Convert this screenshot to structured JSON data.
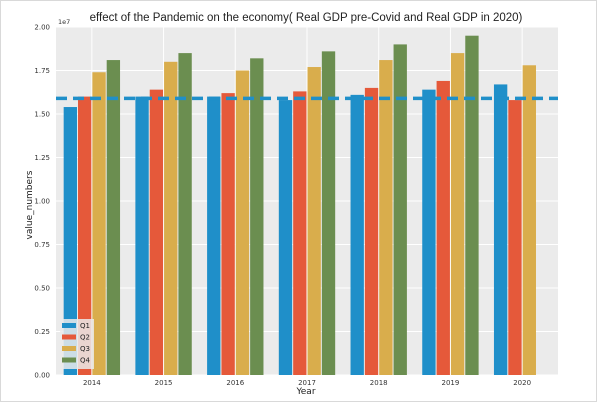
{
  "chart_data": {
    "type": "bar",
    "title": "effect of the Pandemic on the economy( Real GDP pre-Covid and Real GDP in 2020)",
    "xlabel": "Year",
    "ylabel": "value_numbers",
    "y_multiplier": "1e7",
    "ylim": [
      0.0,
      2.0
    ],
    "yticks": [
      "0.00",
      "0.25",
      "0.50",
      "0.75",
      "1.00",
      "1.25",
      "1.50",
      "1.75",
      "2.00"
    ],
    "categories": [
      "2014",
      "2015",
      "2016",
      "2017",
      "2018",
      "2019",
      "2020"
    ],
    "series": [
      {
        "name": "Q1",
        "color": "#1f8fc9",
        "values": [
          1.54,
          1.6,
          1.6,
          1.58,
          1.61,
          1.64,
          1.67
        ]
      },
      {
        "name": "Q2",
        "color": "#e5593a",
        "values": [
          1.6,
          1.64,
          1.62,
          1.63,
          1.65,
          1.69,
          1.58
        ]
      },
      {
        "name": "Q3",
        "color": "#d9ad4c",
        "values": [
          1.74,
          1.8,
          1.75,
          1.77,
          1.81,
          1.85,
          1.78
        ]
      },
      {
        "name": "Q4",
        "color": "#6b8e50",
        "values": [
          1.81,
          1.85,
          1.82,
          1.86,
          1.9,
          1.95,
          null
        ]
      }
    ],
    "reference_line": {
      "value": 1.59,
      "color": "#1f8fc9",
      "style": "dashed"
    },
    "grid": true,
    "background": "#ebebeb",
    "legend": "bottom-left"
  }
}
